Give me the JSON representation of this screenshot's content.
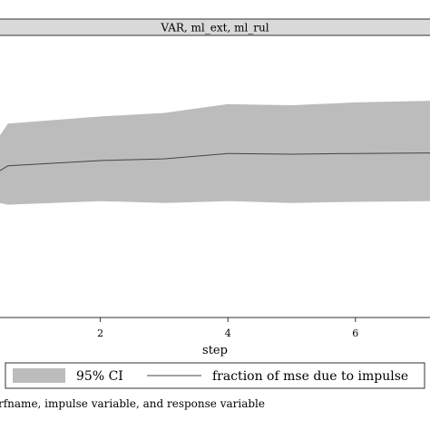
{
  "chart_data": {
    "type": "area",
    "panel_title": "VAR, ml_ext, ml_rul",
    "xlabel": "step",
    "x_ticks": [
      2,
      4,
      6
    ],
    "xlim": [
      0,
      7.3
    ],
    "ylim": [
      -0.25,
      0.55
    ],
    "grid": false,
    "series": [
      {
        "name": "fraction of mse due to impulse",
        "x": [
          0,
          0.55,
          2,
          3,
          4,
          5,
          6,
          7.3
        ],
        "y": [
          0.12,
          0.18,
          0.195,
          0.2,
          0.215,
          0.213,
          0.215,
          0.217
        ]
      },
      {
        "name": "95% CI",
        "x": [
          0,
          0.55,
          2,
          3,
          4,
          5,
          6,
          7.3
        ],
        "lower": [
          0.09,
          0.07,
          0.08,
          0.075,
          0.08,
          0.075,
          0.078,
          0.08
        ],
        "upper": [
          0.15,
          0.3,
          0.32,
          0.33,
          0.355,
          0.352,
          0.36,
          0.365
        ]
      }
    ],
    "legend": {
      "placement": "bottom",
      "items": [
        {
          "label": "95% CI",
          "kind": "area"
        },
        {
          "label": "fraction of mse due to impulse",
          "kind": "line"
        }
      ]
    },
    "note": "rfname, impulse variable, and response variable",
    "colors": {
      "band": "#bcbcbc",
      "line": "#444444",
      "header": "#d9d9d9"
    }
  }
}
